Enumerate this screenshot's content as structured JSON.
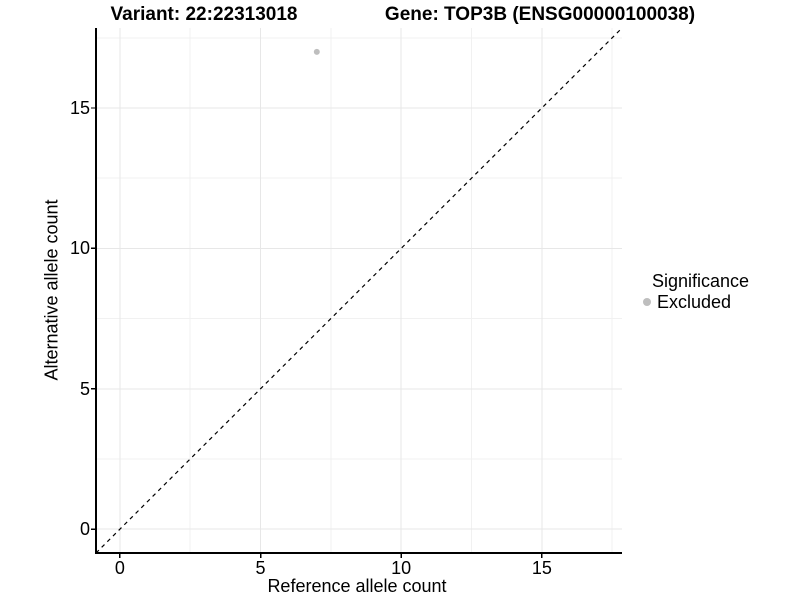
{
  "chart_data": {
    "type": "scatter",
    "titles": {
      "variant": "Variant: 22:22313018",
      "gene": "Gene: TOP3B (ENSG00000100038)"
    },
    "xlabel": "Reference allele count",
    "ylabel": "Alternative allele count",
    "xlim": [
      -0.85,
      17.85
    ],
    "ylim": [
      -0.85,
      17.85
    ],
    "xticks": [
      0,
      5,
      10,
      15
    ],
    "yticks": [
      0,
      5,
      10,
      15
    ],
    "minor_grid_step": 2.5,
    "grid": true,
    "series": [
      {
        "name": "Excluded",
        "color": "#bebebe",
        "points": [
          {
            "x": 7,
            "y": 17
          }
        ]
      }
    ],
    "reference_line": {
      "kind": "identity y = x",
      "style": "dashed",
      "color": "#000000"
    },
    "legend": {
      "title": "Significance",
      "position": "right",
      "entries": [
        {
          "label": "Excluded",
          "color": "#bebebe",
          "marker": "circle"
        }
      ]
    },
    "colors": {
      "background": "#ffffff",
      "axis_line": "#000000",
      "grid_major": "#e7e7e7",
      "grid_minor": "#f1f1f1",
      "text": "#000000"
    }
  }
}
